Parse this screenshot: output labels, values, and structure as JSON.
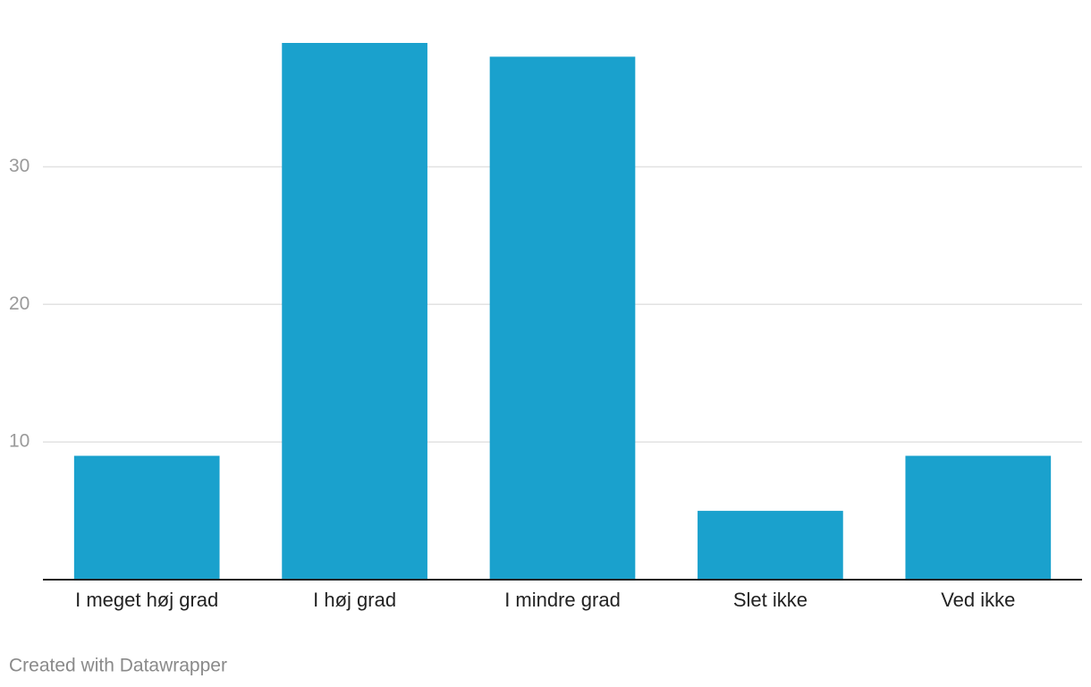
{
  "chart_data": {
    "type": "bar",
    "categories": [
      "I meget høj grad",
      "I høj grad",
      "I mindre grad",
      "Slet ikke",
      "Ved ikke"
    ],
    "values": [
      9,
      39,
      38,
      5,
      9
    ],
    "color": "#1aa1cd",
    "ylim": [
      0,
      39
    ],
    "yticks": [
      10,
      20,
      30
    ],
    "grid": true,
    "credit": "Created with Datawrapper"
  }
}
